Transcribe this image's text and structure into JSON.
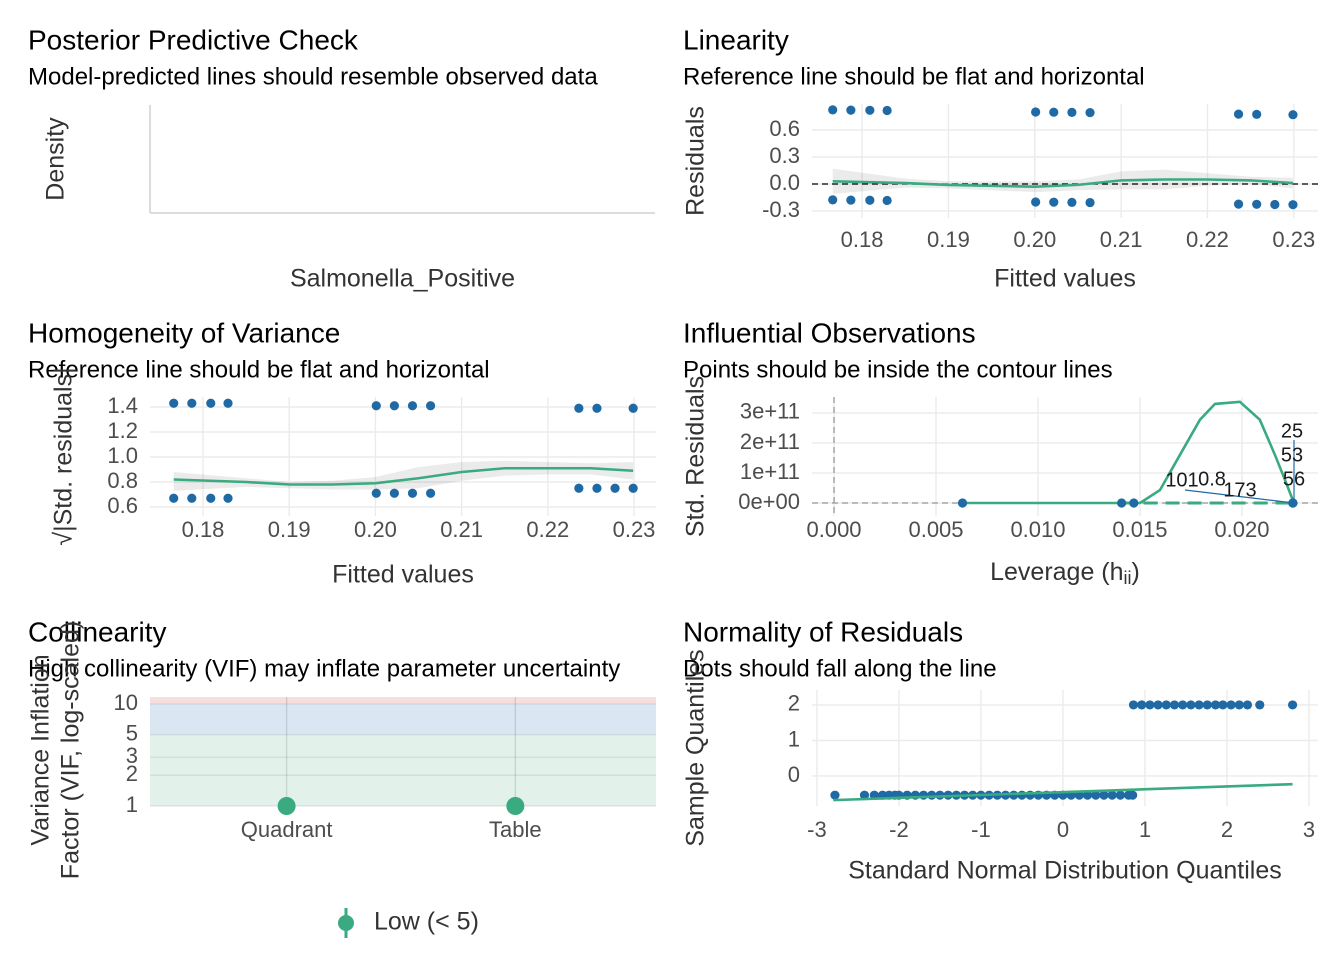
{
  "chart_data": [
    {
      "type": "density",
      "title": "Posterior Predictive Check",
      "subtitle": "Model-predicted lines should resemble observed data",
      "xlabel": "Salmonella_Positive",
      "ylabel": "Density"
    },
    {
      "type": "scatter",
      "title": "Linearity",
      "subtitle": "Reference line should be flat and horizontal",
      "xlabel": "Fitted values",
      "ylabel": "Residuals",
      "xlim": [
        0.1742,
        0.2328
      ],
      "ylim": [
        -0.378,
        0.889
      ],
      "xticks": [
        0.18,
        0.19,
        {
          "value": 0.2,
          "label": "0.20"
        },
        0.21,
        0.22,
        0.23
      ],
      "yticks": [
        -0.3,
        {
          "value": 0,
          "label": "0.0"
        },
        0.3,
        0.6
      ],
      "hline": 0,
      "grid": true,
      "series": [
        {
          "mode": "points",
          "color": "#1f6aa5",
          "x": [
            0.1766,
            0.1787,
            0.1809,
            0.1829,
            0.2001,
            0.2022,
            0.2043,
            0.2064,
            0.2236,
            0.2257,
            0.2299,
            0.1766,
            0.1787,
            0.1809,
            0.1829,
            0.2001,
            0.2022,
            0.2043,
            0.2064,
            0.2236,
            0.2257,
            0.2278,
            0.2299
          ],
          "values": [
            0.8234,
            0.8213,
            0.8191,
            0.8171,
            0.7999,
            0.7978,
            0.7957,
            0.7936,
            0.7764,
            0.7743,
            0.7701,
            -0.1766,
            -0.1787,
            -0.1809,
            -0.1829,
            -0.2001,
            -0.2022,
            -0.2043,
            -0.2064,
            -0.2236,
            -0.2257,
            -0.2278,
            -0.2299
          ]
        },
        {
          "mode": "line",
          "color": "#3aaa80",
          "x": [
            0.1766,
            0.185,
            0.19,
            0.195,
            0.2,
            0.205,
            0.21,
            0.215,
            0.22,
            0.225,
            0.2299
          ],
          "values": [
            0.03,
            0.01,
            -0.01,
            -0.02,
            -0.03,
            -0.01,
            0.04,
            0.05,
            0.05,
            0.04,
            0.01
          ],
          "lower": [
            -0.11,
            -0.04,
            -0.05,
            -0.07,
            -0.09,
            -0.07,
            -0.06,
            -0.06,
            -0.02,
            0.0,
            -0.05
          ],
          "upper": [
            0.17,
            0.06,
            0.03,
            0.03,
            0.03,
            0.05,
            0.14,
            0.16,
            0.12,
            0.08,
            0.07
          ]
        }
      ]
    },
    {
      "type": "scatter",
      "title": "Homogeneity of Variance",
      "subtitle": "Reference line should be flat and horizontal",
      "xlabel": "Fitted values",
      "ylabel": "√|Std. residuals|",
      "xlim": [
        0.17385,
        0.23255
      ],
      "ylim": [
        0.528,
        1.48
      ],
      "xticks": [
        0.18,
        0.19,
        {
          "value": 0.2,
          "label": "0.20"
        },
        0.21,
        0.22,
        0.23
      ],
      "yticks": [
        0.6,
        0.8,
        {
          "value": 1,
          "label": "1.0"
        },
        1.2,
        1.4
      ],
      "grid": true,
      "series": [
        {
          "mode": "points",
          "color": "#1f6aa5",
          "x": [
            0.1766,
            0.1787,
            0.1809,
            0.1829,
            0.2001,
            0.2022,
            0.2043,
            0.2064,
            0.2236,
            0.2257,
            0.2299,
            0.1766,
            0.1787,
            0.1809,
            0.1829,
            0.2001,
            0.2022,
            0.2043,
            0.2064,
            0.2236,
            0.2257,
            0.2278,
            0.2299
          ],
          "values": [
            1.43,
            1.43,
            1.43,
            1.43,
            1.41,
            1.41,
            1.41,
            1.41,
            1.39,
            1.39,
            1.39,
            0.67,
            0.67,
            0.67,
            0.67,
            0.71,
            0.71,
            0.71,
            0.71,
            0.75,
            0.75,
            0.75,
            0.75
          ]
        },
        {
          "mode": "line",
          "color": "#3aaa80",
          "x": [
            0.1766,
            0.185,
            0.19,
            0.195,
            0.2,
            0.205,
            0.21,
            0.215,
            0.22,
            0.225,
            0.2299
          ],
          "values": [
            0.82,
            0.8,
            0.78,
            0.78,
            0.79,
            0.83,
            0.88,
            0.91,
            0.91,
            0.91,
            0.89
          ],
          "lower": [
            0.73,
            0.76,
            0.75,
            0.74,
            0.74,
            0.75,
            0.81,
            0.85,
            0.86,
            0.86,
            0.82
          ],
          "upper": [
            0.88,
            0.83,
            0.8,
            0.81,
            0.84,
            0.92,
            0.96,
            0.97,
            0.96,
            0.95,
            0.96
          ]
        }
      ]
    },
    {
      "type": "scatter",
      "title": "Influential Observations",
      "subtitle": "Points should be inside the contour lines",
      "xlabel_main": "Leverage (h",
      "xlabel_sub": "ii",
      "xlabel_end": ")",
      "ylabel": "Std. Residuals",
      "xlim": [
        -0.00108,
        0.02373
      ],
      "ylim": [
        -43300000000,
        353000000000
      ],
      "xticks": [
        {
          "value": 0,
          "label": "0.000"
        },
        0.005,
        {
          "value": 0.01,
          "label": "0.010"
        },
        0.015,
        {
          "value": 0.02,
          "label": "0.020"
        }
      ],
      "yticks": [
        {
          "value": 0,
          "label": "0e+00"
        },
        {
          "value": 100000000000,
          "label": "1e+11"
        },
        {
          "value": 200000000000,
          "label": "2e+11"
        },
        {
          "value": 300000000000,
          "label": "3e+11"
        }
      ],
      "hline": 0,
      "vline": 0,
      "grid": true,
      "point_labels": [
        "25",
        "53",
        "56",
        "101",
        "173"
      ],
      "contour_label": "0.8",
      "series": [
        {
          "mode": "line",
          "color": "#3aaa80",
          "x": [
            0.0063,
            0.0141,
            0.015,
            0.01598,
            0.01696,
            0.01794,
            0.01868,
            0.0199,
            0.02088,
            0.02162,
            0.02211,
            0.02255
          ],
          "values": [
            0,
            0,
            0,
            43000000000,
            160000000000,
            277000000000,
            330000000000,
            337000000000,
            277000000000,
            160000000000,
            77000000000,
            0
          ]
        },
        {
          "mode": "dashed",
          "color": "#3aaa80",
          "x": [
            0.0141,
            0.0225
          ],
          "values": [
            0,
            0
          ]
        },
        {
          "mode": "points",
          "color": "#1f6aa5",
          "x": [
            0.0063,
            0.0141,
            0.0147,
            0.0225,
            0.0225
          ],
          "values": [
            0,
            0,
            0,
            0,
            0
          ]
        }
      ]
    },
    {
      "type": "dot",
      "title": "Collinearity",
      "subtitle": "High collinearity (VIF) may inflate parameter uncertainty",
      "ylabel": [
        "Variance Inflation",
        "Factor (VIF, log-scaled)"
      ],
      "categories": [
        "Quadrant",
        "Table"
      ],
      "values": [
        1,
        1
      ],
      "color": "#3aaa80",
      "log_y": true,
      "ylim": [
        1,
        11.7
      ],
      "yticks": [
        1,
        2,
        3,
        5,
        10
      ],
      "thresholds": [
        5,
        10
      ],
      "zone_colors": [
        "#e2f2ea",
        "#dae7f2",
        "#f8dfdf"
      ],
      "legend_label": "Low (< 5)"
    },
    {
      "type": "scatter",
      "title": "Normality of Residuals",
      "subtitle": "Dots should fall along the line",
      "xlabel": "Standard Normal Distribution Quantiles",
      "ylabel": "Sample Quantiles",
      "xlim": [
        -3.06,
        3.11
      ],
      "ylim": [
        -0.845,
        2.42
      ],
      "xticks": [
        -3,
        -2,
        -1,
        0,
        1,
        2,
        3
      ],
      "yticks": [
        0,
        1,
        2
      ],
      "grid": true,
      "series": [
        {
          "mode": "points",
          "color": "#1f6aa5",
          "x": [
            -2.78,
            -2.42,
            -2.3,
            -2.2,
            -2.12,
            -2.05,
            -2.0,
            -1.9,
            -1.8,
            -1.7,
            -1.6,
            -1.5,
            -1.4,
            -1.3,
            -1.2,
            -1.1,
            -1.0,
            -0.9,
            -0.8,
            -0.7,
            -0.6,
            -0.5,
            -0.4,
            -0.3,
            -0.2,
            -0.1,
            0.0,
            0.1,
            0.2,
            0.3,
            0.4,
            0.5,
            0.6,
            0.7,
            0.8,
            0.85,
            0.86,
            0.96,
            1.06,
            1.16,
            1.26,
            1.36,
            1.46,
            1.56,
            1.66,
            1.76,
            1.86,
            1.95,
            2.05,
            2.15,
            2.25,
            2.4,
            2.8
          ],
          "values": [
            -0.54,
            -0.54,
            -0.54,
            -0.54,
            -0.54,
            -0.54,
            -0.54,
            -0.54,
            -0.54,
            -0.54,
            -0.54,
            -0.54,
            -0.54,
            -0.54,
            -0.54,
            -0.54,
            -0.54,
            -0.54,
            -0.54,
            -0.54,
            -0.54,
            -0.54,
            -0.54,
            -0.54,
            -0.54,
            -0.54,
            -0.54,
            -0.54,
            -0.54,
            -0.54,
            -0.54,
            -0.54,
            -0.54,
            -0.54,
            -0.54,
            -0.54,
            2,
            2,
            2,
            2,
            2,
            2,
            2,
            2,
            2,
            2,
            2,
            2,
            2,
            2,
            2,
            2,
            2
          ]
        },
        {
          "mode": "line",
          "color": "#3aaa80",
          "x": [
            -2.8,
            2.8
          ],
          "values": [
            -0.68,
            -0.23
          ]
        }
      ]
    }
  ]
}
